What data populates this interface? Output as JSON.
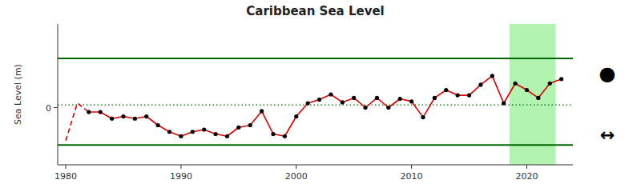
{
  "chart_data": {
    "type": "line",
    "title": "Caribbean Sea Level",
    "y_label": "Sea Level (m)",
    "x": [
      1980,
      1981,
      1982,
      1983,
      1984,
      1985,
      1986,
      1987,
      1988,
      1989,
      1990,
      1991,
      1992,
      1993,
      1994,
      1995,
      1996,
      1997,
      1998,
      1999,
      2000,
      2001,
      2002,
      2003,
      2004,
      2005,
      2006,
      2007,
      2008,
      2009,
      2010,
      2011,
      2012,
      2013,
      2014,
      2015,
      2016,
      2017,
      2018,
      2019,
      2020,
      2021,
      2022,
      2023
    ],
    "series": [
      {
        "type": "line",
        "color": "#DD0000",
        "line_style": "dashed",
        "marker": "none",
        "values": [
          -0.075,
          0.01,
          -0.01,
          null,
          null,
          null,
          null,
          null,
          null,
          null,
          null,
          null,
          null,
          null,
          null,
          null,
          null,
          null,
          null,
          null,
          null,
          null,
          null,
          null,
          null,
          null,
          null,
          null,
          null,
          null,
          null,
          null,
          null,
          null,
          null,
          null,
          null,
          null,
          null,
          null,
          null,
          null,
          null,
          null
        ]
      },
      {
        "type": "line",
        "color": "#DD0000",
        "line_style": "solid",
        "marker": "none",
        "values": [
          null,
          null,
          -0.01,
          -0.01,
          -0.025,
          -0.02,
          -0.025,
          -0.02,
          -0.04,
          -0.055,
          -0.065,
          -0.055,
          -0.05,
          -0.06,
          -0.065,
          -0.045,
          -0.04,
          -0.008,
          -0.06,
          -0.065,
          -0.02,
          0.01,
          0.018,
          0.03,
          0.012,
          0.022,
          0.0,
          0.022,
          0.0,
          0.02,
          0.014,
          -0.022,
          0.022,
          0.04,
          0.028,
          0.028,
          0.052,
          0.072,
          0.01,
          0.055,
          0.04,
          0.022,
          0.055,
          0.065
        ]
      },
      {
        "type": "scatter",
        "color": "#000000",
        "line_style": "none",
        "marker": "circle",
        "values": [
          null,
          null,
          -0.01,
          -0.01,
          -0.025,
          -0.02,
          -0.025,
          -0.02,
          -0.04,
          -0.055,
          -0.065,
          -0.055,
          -0.05,
          -0.06,
          -0.065,
          -0.045,
          -0.04,
          -0.008,
          -0.06,
          -0.065,
          -0.02,
          0.01,
          0.018,
          0.03,
          0.012,
          0.022,
          0.0,
          0.022,
          0.0,
          0.02,
          0.014,
          -0.022,
          0.022,
          0.04,
          0.028,
          0.028,
          0.052,
          0.072,
          0.01,
          0.055,
          0.04,
          0.022,
          0.055,
          0.065
        ]
      }
    ],
    "hlines": [
      {
        "value": 0.112,
        "color": "#006600",
        "line_style": "solid"
      },
      {
        "value": -0.085,
        "color": "#006600",
        "line_style": "solid"
      },
      {
        "value": 0.006,
        "color": "#006600",
        "line_style": "dotted"
      }
    ],
    "shade": {
      "start": 2018.5,
      "end": 2022.5,
      "color": "#90EE90"
    },
    "xlim": [
      1979.3,
      2024.0
    ],
    "ylim": [
      -0.13,
      0.19
    ],
    "xticks": [
      1980,
      1990,
      2000,
      2010,
      2020
    ],
    "yticks": [
      0
    ],
    "grid": false,
    "annotations": [
      "●",
      "↔"
    ]
  }
}
